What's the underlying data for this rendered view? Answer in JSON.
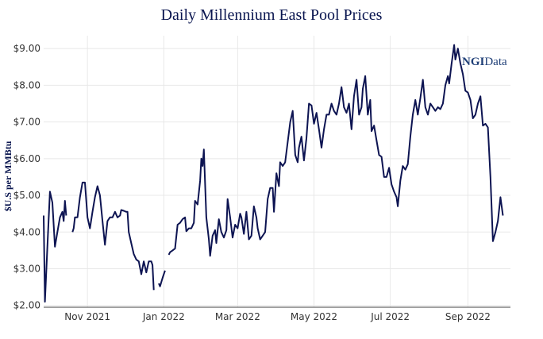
{
  "chart_data": {
    "type": "line",
    "title": "Daily Millennium East Pool Prices",
    "xlabel": "",
    "ylabel": "$U.S per MMBtu",
    "ylim": [
      1.95,
      9.35
    ],
    "xlim": [
      "2021-09-27",
      "2022-10-05"
    ],
    "grid": true,
    "legend": "none",
    "line_color": "#0d1452",
    "logo": {
      "bold": "NGI",
      "regular": "Data"
    },
    "y_ticks": [
      {
        "value": 2,
        "label": "$2.00"
      },
      {
        "value": 3,
        "label": "$3.00"
      },
      {
        "value": 4,
        "label": "$4.00"
      },
      {
        "value": 5,
        "label": "$5.00"
      },
      {
        "value": 6,
        "label": "$6.00"
      },
      {
        "value": 7,
        "label": "$7.00"
      },
      {
        "value": 8,
        "label": "$8.00"
      },
      {
        "value": 9,
        "label": "$9.00"
      }
    ],
    "x_ticks": [
      {
        "date": "2021-11-01",
        "label": "Nov 2021"
      },
      {
        "date": "2022-01-01",
        "label": "Jan 2022"
      },
      {
        "date": "2022-03-01",
        "label": "Mar 2022"
      },
      {
        "date": "2022-05-01",
        "label": "May 2022"
      },
      {
        "date": "2022-07-01",
        "label": "Jul 2022"
      },
      {
        "date": "2022-09-01",
        "label": "Sep 2022"
      }
    ],
    "series": [
      {
        "segments": [
          [
            [
              "2021-09-27",
              4.45
            ],
            [
              "2021-09-28",
              2.1
            ],
            [
              "2021-09-30",
              3.6
            ],
            [
              "2021-10-02",
              5.1
            ],
            [
              "2021-10-04",
              4.8
            ],
            [
              "2021-10-06",
              3.6
            ],
            [
              "2021-10-08",
              4.0
            ],
            [
              "2021-10-10",
              4.4
            ],
            [
              "2021-10-12",
              4.55
            ],
            [
              "2021-10-13",
              4.3
            ],
            [
              "2021-10-14",
              4.85
            ],
            [
              "2021-10-15",
              4.45
            ]
          ],
          [
            [
              "2021-10-20",
              4.0
            ],
            [
              "2021-10-21",
              4.1
            ],
            [
              "2021-10-22",
              4.4
            ],
            [
              "2021-10-24",
              4.4
            ],
            [
              "2021-10-26",
              4.95
            ],
            [
              "2021-10-28",
              5.35
            ],
            [
              "2021-10-30",
              5.35
            ],
            [
              "2021-11-01",
              4.4
            ],
            [
              "2021-11-03",
              4.1
            ],
            [
              "2021-11-05",
              4.55
            ],
            [
              "2021-11-07",
              4.95
            ],
            [
              "2021-11-09",
              5.25
            ],
            [
              "2021-11-11",
              5.0
            ],
            [
              "2021-11-13",
              4.3
            ],
            [
              "2021-11-15",
              3.65
            ],
            [
              "2021-11-17",
              4.3
            ],
            [
              "2021-11-19",
              4.4
            ],
            [
              "2021-11-21",
              4.4
            ],
            [
              "2021-11-23",
              4.55
            ],
            [
              "2021-11-25",
              4.4
            ],
            [
              "2021-11-27",
              4.45
            ],
            [
              "2021-11-28",
              4.6
            ],
            [
              "2021-11-30",
              4.58
            ],
            [
              "2021-12-02",
              4.55
            ],
            [
              "2021-12-03",
              4.55
            ],
            [
              "2021-12-04",
              4.0
            ],
            [
              "2021-12-06",
              3.7
            ],
            [
              "2021-12-08",
              3.4
            ],
            [
              "2021-12-10",
              3.25
            ],
            [
              "2021-12-12",
              3.2
            ],
            [
              "2021-12-14",
              2.85
            ],
            [
              "2021-12-16",
              3.2
            ],
            [
              "2021-12-18",
              2.9
            ],
            [
              "2021-12-20",
              3.2
            ],
            [
              "2021-12-22",
              3.2
            ],
            [
              "2021-12-23",
              3.1
            ],
            [
              "2021-12-24",
              2.42
            ]
          ],
          [
            [
              "2021-12-28",
              2.6
            ],
            [
              "2021-12-29",
              2.52
            ],
            [
              "2021-12-31",
              2.75
            ],
            [
              "2022-01-02",
              2.95
            ]
          ],
          [
            [
              "2022-01-05",
              3.38
            ],
            [
              "2022-01-06",
              3.45
            ],
            [
              "2022-01-08",
              3.5
            ],
            [
              "2022-01-10",
              3.55
            ],
            [
              "2022-01-12",
              4.2
            ],
            [
              "2022-01-14",
              4.25
            ],
            [
              "2022-01-16",
              4.35
            ],
            [
              "2022-01-18",
              4.4
            ],
            [
              "2022-01-19",
              4.02
            ],
            [
              "2022-01-21",
              4.1
            ],
            [
              "2022-01-23",
              4.1
            ],
            [
              "2022-01-25",
              4.25
            ],
            [
              "2022-01-26",
              4.85
            ],
            [
              "2022-01-28",
              4.75
            ],
            [
              "2022-01-30",
              5.4
            ],
            [
              "2022-01-31",
              6.0
            ],
            [
              "2022-02-01",
              5.8
            ],
            [
              "2022-02-02",
              6.25
            ],
            [
              "2022-02-04",
              4.4
            ],
            [
              "2022-02-06",
              3.8
            ],
            [
              "2022-02-07",
              3.35
            ],
            [
              "2022-02-09",
              3.9
            ],
            [
              "2022-02-11",
              4.05
            ],
            [
              "2022-02-12",
              3.7
            ],
            [
              "2022-02-14",
              4.35
            ],
            [
              "2022-02-16",
              4.0
            ],
            [
              "2022-02-18",
              3.85
            ],
            [
              "2022-02-20",
              4.05
            ],
            [
              "2022-02-21",
              4.9
            ],
            [
              "2022-02-23",
              4.4
            ],
            [
              "2022-02-25",
              3.85
            ],
            [
              "2022-02-27",
              4.2
            ],
            [
              "2022-03-01",
              4.1
            ],
            [
              "2022-03-03",
              4.5
            ],
            [
              "2022-03-04",
              4.4
            ],
            [
              "2022-03-06",
              3.95
            ],
            [
              "2022-03-08",
              4.55
            ],
            [
              "2022-03-10",
              3.8
            ],
            [
              "2022-03-12",
              3.9
            ],
            [
              "2022-03-14",
              4.7
            ],
            [
              "2022-03-16",
              4.4
            ],
            [
              "2022-03-17",
              4.1
            ],
            [
              "2022-03-19",
              3.8
            ],
            [
              "2022-03-21",
              3.9
            ],
            [
              "2022-03-23",
              4.0
            ],
            [
              "2022-03-25",
              4.9
            ],
            [
              "2022-03-27",
              5.2
            ],
            [
              "2022-03-29",
              5.2
            ],
            [
              "2022-03-30",
              4.55
            ],
            [
              "2022-04-01",
              5.6
            ],
            [
              "2022-04-03",
              5.25
            ],
            [
              "2022-04-04",
              5.9
            ],
            [
              "2022-04-06",
              5.8
            ],
            [
              "2022-04-08",
              5.9
            ],
            [
              "2022-04-10",
              6.45
            ],
            [
              "2022-04-12",
              7.0
            ],
            [
              "2022-04-14",
              7.3
            ],
            [
              "2022-04-16",
              6.1
            ],
            [
              "2022-04-18",
              5.9
            ],
            [
              "2022-04-19",
              6.3
            ],
            [
              "2022-04-21",
              6.6
            ],
            [
              "2022-04-23",
              5.95
            ],
            [
              "2022-04-25",
              6.55
            ],
            [
              "2022-04-27",
              7.5
            ],
            [
              "2022-04-29",
              7.45
            ],
            [
              "2022-05-01",
              6.95
            ],
            [
              "2022-05-03",
              7.25
            ],
            [
              "2022-05-05",
              6.8
            ],
            [
              "2022-05-07",
              6.3
            ],
            [
              "2022-05-09",
              6.8
            ],
            [
              "2022-05-11",
              7.2
            ],
            [
              "2022-05-13",
              7.2
            ],
            [
              "2022-05-15",
              7.5
            ],
            [
              "2022-05-17",
              7.3
            ],
            [
              "2022-05-19",
              7.2
            ],
            [
              "2022-05-21",
              7.5
            ],
            [
              "2022-05-23",
              7.95
            ],
            [
              "2022-05-25",
              7.4
            ],
            [
              "2022-05-27",
              7.25
            ],
            [
              "2022-05-29",
              7.5
            ],
            [
              "2022-05-31",
              6.8
            ],
            [
              "2022-06-02",
              7.7
            ],
            [
              "2022-06-04",
              8.15
            ],
            [
              "2022-06-06",
              7.2
            ],
            [
              "2022-06-08",
              7.4
            ],
            [
              "2022-06-09",
              7.9
            ],
            [
              "2022-06-11",
              8.25
            ],
            [
              "2022-06-13",
              7.2
            ],
            [
              "2022-06-15",
              7.6
            ],
            [
              "2022-06-16",
              6.75
            ],
            [
              "2022-06-18",
              6.9
            ],
            [
              "2022-06-20",
              6.5
            ],
            [
              "2022-06-22",
              6.1
            ],
            [
              "2022-06-24",
              6.05
            ],
            [
              "2022-06-26",
              5.5
            ],
            [
              "2022-06-28",
              5.5
            ],
            [
              "2022-06-30",
              5.75
            ],
            [
              "2022-07-02",
              5.3
            ],
            [
              "2022-07-04",
              5.1
            ],
            [
              "2022-07-06",
              4.95
            ],
            [
              "2022-07-07",
              4.7
            ],
            [
              "2022-07-09",
              5.4
            ],
            [
              "2022-07-11",
              5.8
            ],
            [
              "2022-07-13",
              5.7
            ],
            [
              "2022-07-15",
              5.85
            ],
            [
              "2022-07-17",
              6.6
            ],
            [
              "2022-07-19",
              7.2
            ],
            [
              "2022-07-21",
              7.6
            ],
            [
              "2022-07-23",
              7.2
            ],
            [
              "2022-07-25",
              7.65
            ],
            [
              "2022-07-27",
              8.15
            ],
            [
              "2022-07-29",
              7.4
            ],
            [
              "2022-07-31",
              7.2
            ],
            [
              "2022-08-02",
              7.5
            ],
            [
              "2022-08-04",
              7.4
            ],
            [
              "2022-08-06",
              7.3
            ],
            [
              "2022-08-08",
              7.4
            ],
            [
              "2022-08-10",
              7.35
            ],
            [
              "2022-08-12",
              7.5
            ],
            [
              "2022-08-14",
              8.0
            ],
            [
              "2022-08-16",
              8.25
            ],
            [
              "2022-08-17",
              8.05
            ],
            [
              "2022-08-19",
              8.6
            ],
            [
              "2022-08-21",
              9.1
            ],
            [
              "2022-08-22",
              8.7
            ],
            [
              "2022-08-24",
              9.0
            ],
            [
              "2022-08-26",
              8.6
            ],
            [
              "2022-08-28",
              8.3
            ],
            [
              "2022-08-30",
              7.85
            ],
            [
              "2022-09-01",
              7.8
            ],
            [
              "2022-09-03",
              7.6
            ],
            [
              "2022-09-05",
              7.1
            ],
            [
              "2022-09-07",
              7.2
            ],
            [
              "2022-09-09",
              7.5
            ],
            [
              "2022-09-11",
              7.7
            ],
            [
              "2022-09-13",
              6.9
            ],
            [
              "2022-09-15",
              6.95
            ],
            [
              "2022-09-17",
              6.85
            ],
            [
              "2022-09-19",
              5.5
            ],
            [
              "2022-09-21",
              3.75
            ],
            [
              "2022-09-23",
              4.0
            ],
            [
              "2022-09-25",
              4.3
            ],
            [
              "2022-09-27",
              4.95
            ],
            [
              "2022-09-29",
              4.45
            ]
          ]
        ]
      }
    ]
  }
}
